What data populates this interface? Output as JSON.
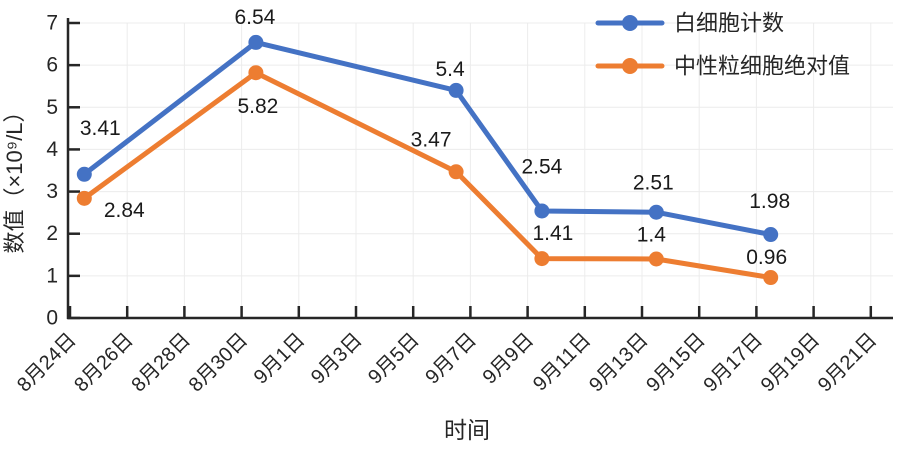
{
  "chart_data": {
    "type": "line",
    "title": "",
    "xlabel": "时间",
    "ylabel": "数值（×10⁹/L）",
    "ylim": [
      0,
      7
    ],
    "grid": true,
    "legend_position": "top-right",
    "y_tick_labels": [
      "0",
      "1",
      "2",
      "3",
      "4",
      "5",
      "6",
      "7"
    ],
    "x_tick_labels": [
      "8月24日",
      "8月26日",
      "8月28日",
      "8月30日",
      "9月1日",
      "9月3日",
      "9月5日",
      "9月7日",
      "9月9日",
      "9月11日",
      "9月13日",
      "9月15日",
      "9月17日",
      "9月19日",
      "9月21日"
    ],
    "x_tick_days": [
      0,
      2,
      4,
      6,
      8,
      10,
      12,
      14,
      16,
      18,
      20,
      22,
      24,
      26,
      28
    ],
    "series": [
      {
        "name": "白细胞计数",
        "color": "#4472C4",
        "x_days": [
          0.5,
          6.5,
          13.5,
          16.5,
          20.5,
          24.5
        ],
        "values": [
          3.41,
          6.54,
          5.4,
          2.54,
          2.51,
          1.98
        ],
        "label_offsets": [
          [
            16,
            -46
          ],
          [
            -1,
            -25
          ],
          [
            -6,
            -21
          ],
          [
            0,
            -44
          ],
          [
            -3,
            -29
          ],
          [
            -1,
            -33
          ]
        ]
      },
      {
        "name": "中性粒细胞绝对值",
        "color": "#ED7D31",
        "x_days": [
          0.5,
          6.5,
          13.5,
          16.5,
          20.5,
          24.5
        ],
        "values": [
          2.84,
          5.82,
          3.47,
          1.41,
          1.4,
          0.96
        ],
        "label_offsets": [
          [
            40,
            12
          ],
          [
            2,
            34
          ],
          [
            -25,
            -32
          ],
          [
            11,
            -25
          ],
          [
            -5,
            -24
          ],
          [
            -4,
            -20
          ]
        ]
      }
    ],
    "colors": {
      "axis": "#262626",
      "text": "#1a1a1a",
      "grid": "#ECECEC"
    }
  }
}
